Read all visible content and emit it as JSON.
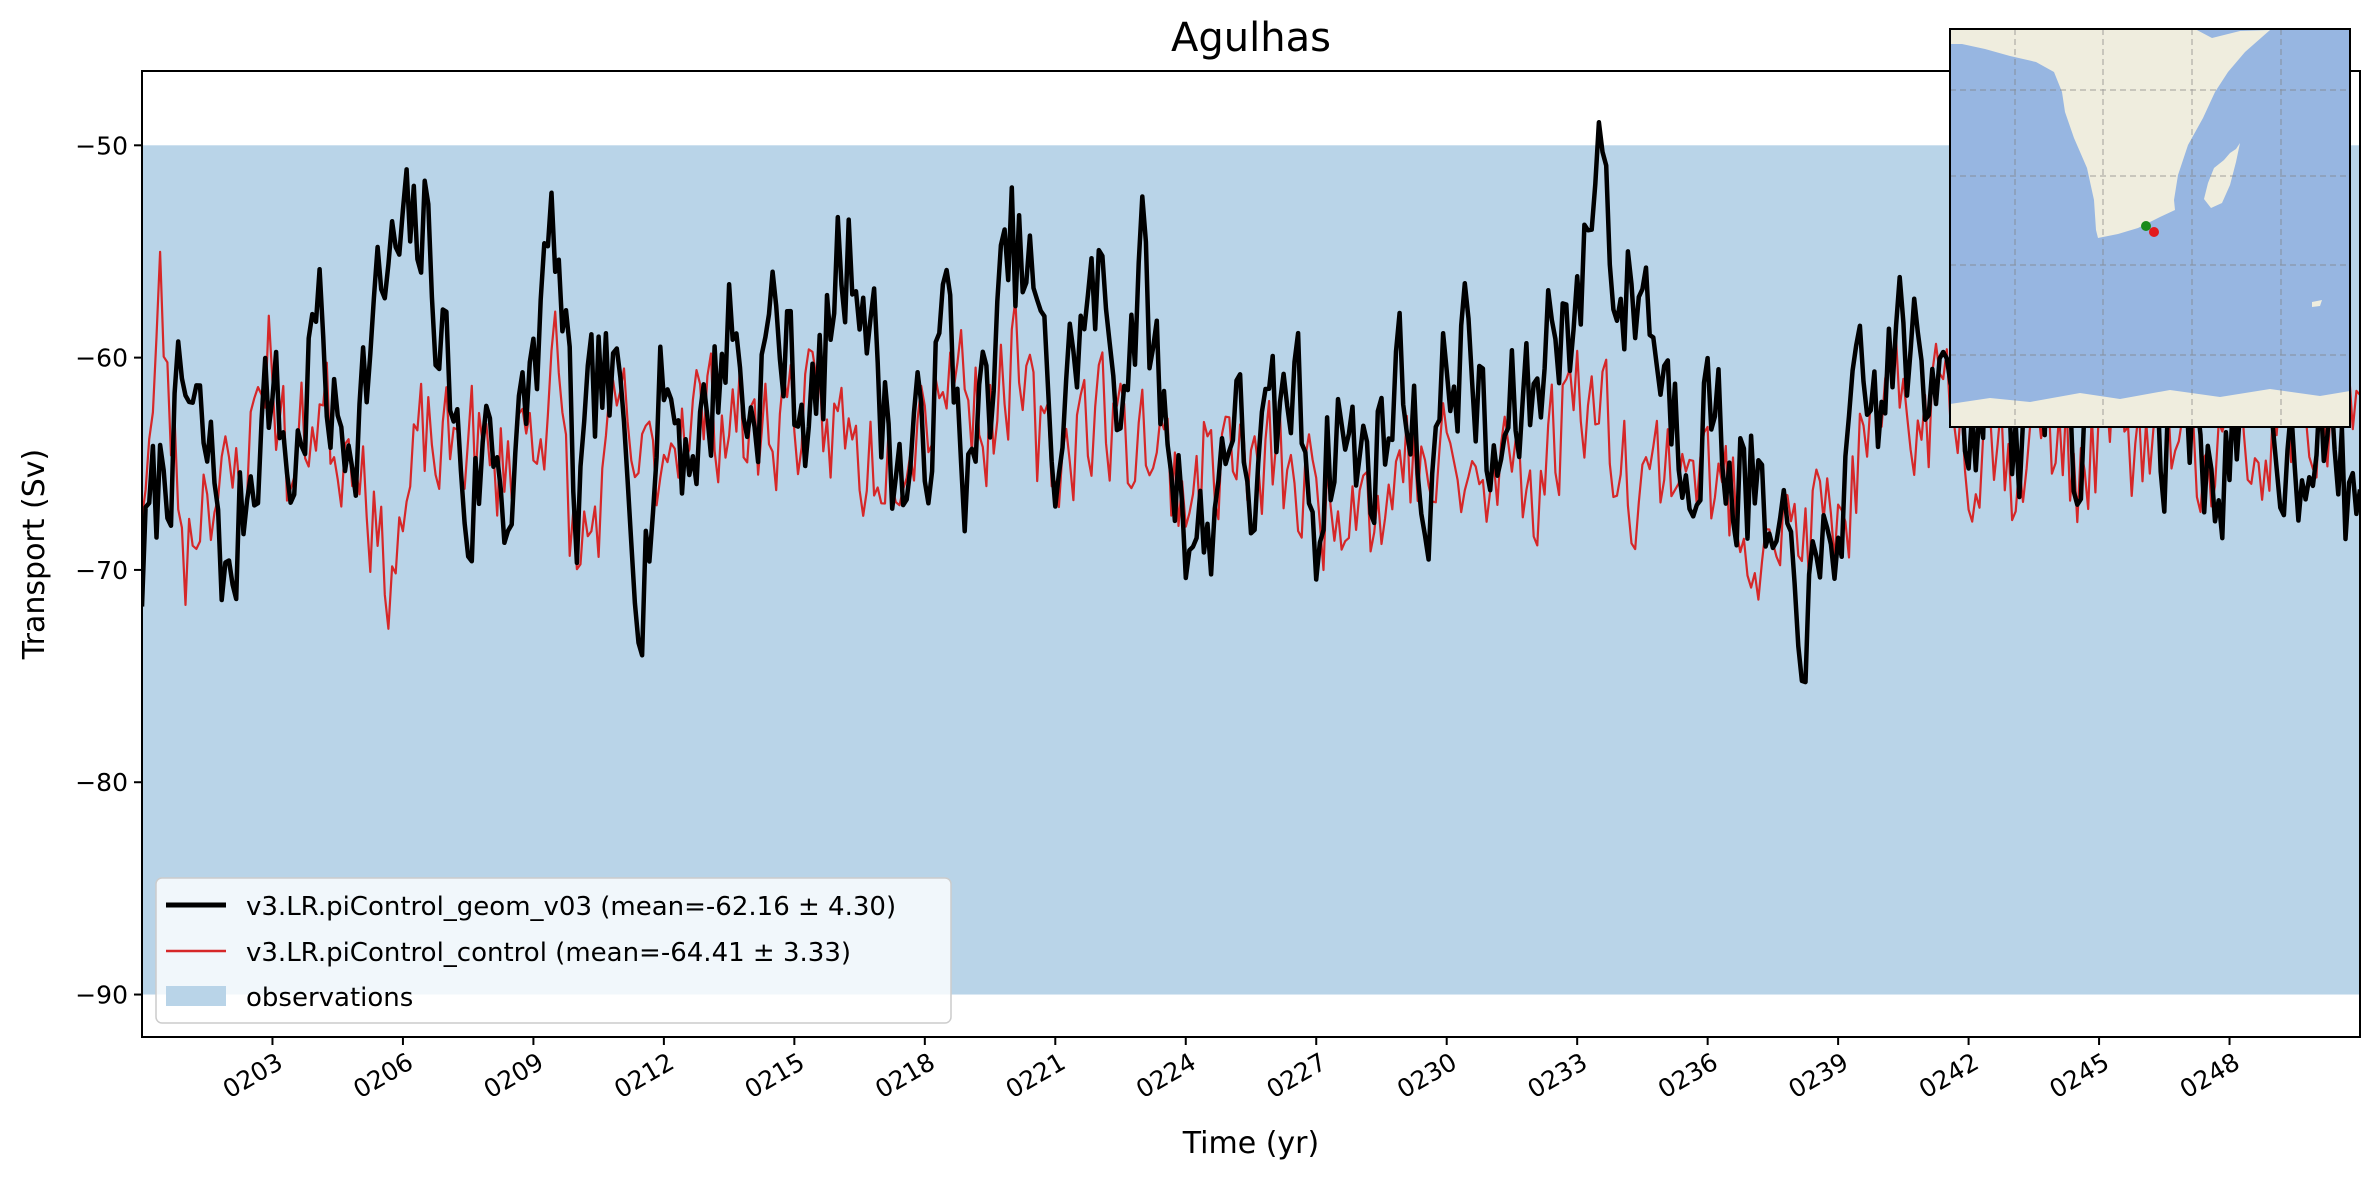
{
  "chart_data": {
    "type": "line",
    "title": "Agulhas",
    "xlabel": "Time (yr)",
    "ylabel": "Transport (Sv)",
    "xlim": [
      200.0,
      251.0
    ],
    "ylim": [
      -92.0,
      -46.5
    ],
    "yticks": [
      -50,
      -60,
      -70,
      -80,
      -90
    ],
    "ytick_labels": [
      "−50",
      "−60",
      "−70",
      "−80",
      "−90"
    ],
    "xticks": [
      203,
      206,
      209,
      212,
      215,
      218,
      221,
      224,
      227,
      230,
      233,
      236,
      239,
      242,
      245,
      248
    ],
    "xtick_labels": [
      "0203",
      "0206",
      "0209",
      "0212",
      "0215",
      "0218",
      "0221",
      "0224",
      "0227",
      "0230",
      "0233",
      "0236",
      "0239",
      "0242",
      "0245",
      "0248"
    ],
    "observations": {
      "name": "observations",
      "ymin": -90,
      "ymax": -50,
      "color": "#b9d4e8"
    },
    "series": [
      {
        "name": "v3.LR.piControl_geom_v03 (mean=-62.16 ± 4.30)",
        "color": "#000000",
        "keypoints": [
          [
            200.0,
            -70
          ],
          [
            200.5,
            -65
          ],
          [
            201,
            -62
          ],
          [
            201.7,
            -66
          ],
          [
            202,
            -72
          ],
          [
            202.3,
            -67
          ],
          [
            202.9,
            -61
          ],
          [
            203.5,
            -66
          ],
          [
            204,
            -58
          ],
          [
            204.5,
            -64
          ],
          [
            205,
            -62
          ],
          [
            205.5,
            -57
          ],
          [
            206,
            -55
          ],
          [
            206.5,
            -54
          ],
          [
            207,
            -60
          ],
          [
            207.5,
            -68
          ],
          [
            208,
            -63
          ],
          [
            208.5,
            -67
          ],
          [
            209,
            -60
          ],
          [
            209.5,
            -54
          ],
          [
            210,
            -68
          ],
          [
            210.5,
            -61
          ],
          [
            211,
            -63
          ],
          [
            211.5,
            -70
          ],
          [
            212,
            -61
          ],
          [
            212.5,
            -64
          ],
          [
            213,
            -63
          ],
          [
            213.5,
            -58
          ],
          [
            214,
            -63
          ],
          [
            214.5,
            -58
          ],
          [
            215,
            -61
          ],
          [
            215.5,
            -63
          ],
          [
            216,
            -56
          ],
          [
            216.5,
            -55
          ],
          [
            217,
            -62
          ],
          [
            217.5,
            -66
          ],
          [
            218,
            -64
          ],
          [
            218.5,
            -58
          ],
          [
            219,
            -66
          ],
          [
            219.5,
            -61
          ],
          [
            220,
            -55
          ],
          [
            220.5,
            -57
          ],
          [
            221,
            -65
          ],
          [
            221.5,
            -59
          ],
          [
            222,
            -57
          ],
          [
            222.5,
            -61
          ],
          [
            223,
            -56
          ],
          [
            223.5,
            -63
          ],
          [
            224,
            -67
          ],
          [
            224.5,
            -69
          ],
          [
            225,
            -62
          ],
          [
            225.5,
            -66
          ],
          [
            226,
            -64
          ],
          [
            226.5,
            -61
          ],
          [
            227,
            -67
          ],
          [
            227.5,
            -63
          ],
          [
            228,
            -65
          ],
          [
            228.5,
            -64
          ],
          [
            229,
            -60
          ],
          [
            229.5,
            -67
          ],
          [
            230,
            -61
          ],
          [
            230.5,
            -59
          ],
          [
            231,
            -66
          ],
          [
            231.5,
            -63
          ],
          [
            232,
            -62
          ],
          [
            232.5,
            -57
          ],
          [
            233,
            -59
          ],
          [
            233.5,
            -49
          ],
          [
            234,
            -58
          ],
          [
            234.5,
            -56
          ],
          [
            235,
            -61
          ],
          [
            235.5,
            -64
          ],
          [
            236,
            -62
          ],
          [
            236.5,
            -65
          ],
          [
            237,
            -66
          ],
          [
            237.5,
            -70
          ],
          [
            238,
            -71
          ],
          [
            238.5,
            -72
          ],
          [
            239,
            -67
          ],
          [
            239.5,
            -63
          ],
          [
            240,
            -62
          ],
          [
            240.5,
            -58
          ],
          [
            241,
            -63
          ],
          [
            241.5,
            -57
          ],
          [
            242,
            -64
          ],
          [
            242.5,
            -59
          ],
          [
            243,
            -66
          ],
          [
            243.5,
            -62
          ],
          [
            244,
            -60
          ],
          [
            244.5,
            -64
          ],
          [
            245,
            -56
          ],
          [
            245.5,
            -62
          ],
          [
            246,
            -60
          ],
          [
            246.5,
            -64
          ],
          [
            247,
            -61
          ],
          [
            247.5,
            -66
          ],
          [
            248,
            -64
          ],
          [
            248.5,
            -61
          ],
          [
            249,
            -63
          ],
          [
            249.5,
            -65
          ],
          [
            250,
            -62
          ],
          [
            250.5,
            -66
          ],
          [
            251,
            -67
          ]
        ],
        "noise_amp": 3.3,
        "seed": 7,
        "line_width": 4.5
      },
      {
        "name": "v3.LR.piControl_control (mean=-64.41 ± 3.33)",
        "color": "#d62728",
        "keypoints": [
          [
            200.0,
            -66
          ],
          [
            200.3,
            -62
          ],
          [
            200.4,
            -57
          ],
          [
            200.7,
            -64
          ],
          [
            201,
            -69
          ],
          [
            201.5,
            -65
          ],
          [
            202,
            -67
          ],
          [
            202.5,
            -64
          ],
          [
            202.9,
            -59
          ],
          [
            203.4,
            -66
          ],
          [
            204,
            -62
          ],
          [
            204.5,
            -64
          ],
          [
            205,
            -63
          ],
          [
            205.5,
            -70
          ],
          [
            206,
            -68
          ],
          [
            206.5,
            -64
          ],
          [
            207,
            -65
          ],
          [
            207.5,
            -63
          ],
          [
            208,
            -66
          ],
          [
            208.5,
            -64
          ],
          [
            209,
            -63
          ],
          [
            209.5,
            -61
          ],
          [
            210,
            -70
          ],
          [
            210.5,
            -67
          ],
          [
            211,
            -63
          ],
          [
            211.5,
            -66
          ],
          [
            212,
            -64
          ],
          [
            212.5,
            -62
          ],
          [
            213,
            -63
          ],
          [
            213.5,
            -62
          ],
          [
            214,
            -64
          ],
          [
            214.5,
            -63
          ],
          [
            215,
            -62
          ],
          [
            215.5,
            -64
          ],
          [
            216,
            -63
          ],
          [
            216.5,
            -65
          ],
          [
            217,
            -64
          ],
          [
            217.5,
            -63
          ],
          [
            218,
            -62
          ],
          [
            218.5,
            -60
          ],
          [
            219,
            -61
          ],
          [
            219.5,
            -63
          ],
          [
            220,
            -60
          ],
          [
            220.5,
            -64
          ],
          [
            221,
            -65
          ],
          [
            221.5,
            -63
          ],
          [
            222,
            -62
          ],
          [
            222.5,
            -64
          ],
          [
            223,
            -63
          ],
          [
            223.5,
            -65
          ],
          [
            224,
            -66
          ],
          [
            224.5,
            -65
          ],
          [
            225,
            -64
          ],
          [
            225.5,
            -66
          ],
          [
            226,
            -65
          ],
          [
            226.5,
            -66
          ],
          [
            227,
            -67
          ],
          [
            227.5,
            -66
          ],
          [
            228,
            -65
          ],
          [
            228.5,
            -68
          ],
          [
            229,
            -64
          ],
          [
            229.5,
            -66
          ],
          [
            230,
            -65
          ],
          [
            230.5,
            -66
          ],
          [
            231,
            -67
          ],
          [
            231.5,
            -64
          ],
          [
            232,
            -66
          ],
          [
            232.5,
            -64
          ],
          [
            233,
            -60
          ],
          [
            233.5,
            -63
          ],
          [
            234,
            -64
          ],
          [
            234.5,
            -66
          ],
          [
            235,
            -65
          ],
          [
            235.5,
            -64
          ],
          [
            236,
            -66
          ],
          [
            236.5,
            -67
          ],
          [
            237,
            -68
          ],
          [
            237.5,
            -67
          ],
          [
            238,
            -69
          ],
          [
            238.5,
            -68
          ],
          [
            239,
            -68
          ],
          [
            239.5,
            -65
          ],
          [
            240,
            -64
          ],
          [
            240.5,
            -62
          ],
          [
            241,
            -63
          ],
          [
            241.5,
            -61
          ],
          [
            242,
            -64
          ],
          [
            242.5,
            -63
          ],
          [
            243,
            -65
          ],
          [
            243.5,
            -63
          ],
          [
            244,
            -64
          ],
          [
            244.5,
            -65
          ],
          [
            245,
            -64
          ],
          [
            245.5,
            -63
          ],
          [
            246,
            -65
          ],
          [
            246.5,
            -63
          ],
          [
            247,
            -64
          ],
          [
            247.5,
            -66
          ],
          [
            248,
            -64
          ],
          [
            248.5,
            -65
          ],
          [
            249,
            -64
          ],
          [
            249.5,
            -63
          ],
          [
            250,
            -64
          ],
          [
            250.5,
            -62
          ],
          [
            251,
            -60
          ]
        ],
        "noise_amp": 3.0,
        "seed": 23,
        "line_width": 2.2
      }
    ],
    "legend": {
      "location": "lower-left",
      "entries": [
        "v3.LR.piControl_geom_v03 (mean=-62.16 ± 4.30)",
        "v3.LR.piControl_control (mean=-64.41 ± 3.33)",
        "observations"
      ]
    },
    "inset_map": {
      "description": "map of southern Africa",
      "land_color": "#efedde",
      "ocean_color": "#97b6e1",
      "point_colors": [
        "#1a8a1a",
        "#e31a1c"
      ]
    }
  }
}
